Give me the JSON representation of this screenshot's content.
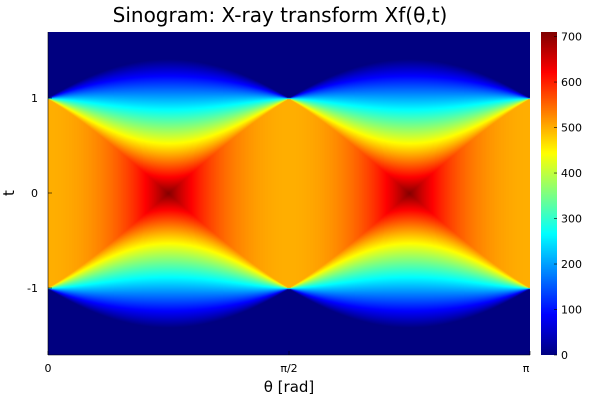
{
  "chart_data": {
    "type": "heatmap",
    "title": "Sinogram: X-ray transform Xf(θ,t)",
    "xlabel": "θ [rad]",
    "ylabel": "t",
    "x_ticks": [
      "0",
      "π/2",
      "π"
    ],
    "y_ticks": [
      "1",
      "0",
      "-1"
    ],
    "xlim": [
      0,
      3.14159
    ],
    "ylim": [
      -1.7,
      1.7
    ],
    "colorbar": {
      "ticks": [
        0,
        100,
        200,
        300,
        400,
        500,
        600,
        700
      ],
      "labels": [
        "0",
        "100",
        "200",
        "300",
        "400",
        "500",
        "600",
        "700"
      ],
      "range": [
        0,
        710
      ],
      "colormap": "jet"
    },
    "legend": "none",
    "grid": false,
    "colors": {
      "low": "#00008f",
      "blue": "#0000ff",
      "cyan": "#00ffff",
      "yellow": "#ffff00",
      "orange": "#ffbf00",
      "red": "#ff0000",
      "high": "#800000"
    },
    "features": {
      "plateau_value": 500,
      "peak_value": 710,
      "peak_locations_theta": [
        0.785,
        2.356
      ],
      "crossing_points_theta": [
        0,
        1.571,
        3.142
      ],
      "crossing_t": [
        1,
        -1
      ],
      "outer_envelope_t_max": 1.414
    }
  }
}
